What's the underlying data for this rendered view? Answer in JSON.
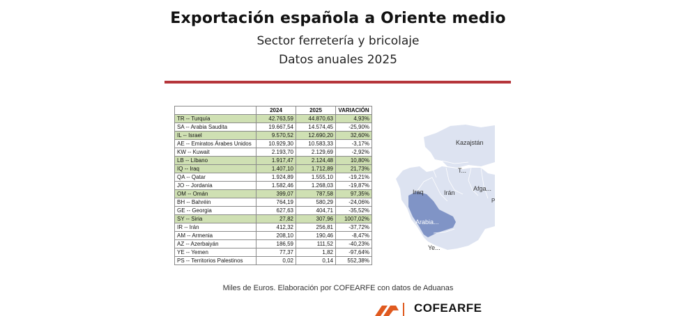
{
  "header": {
    "title": "Exportación española a Oriente medio",
    "subtitle": "Sector ferretería y bricolaje",
    "subtitle2": "Datos anuales 2025"
  },
  "table": {
    "columns": [
      "",
      "2024",
      "2025",
      "VARIACIÓN"
    ],
    "rows": [
      {
        "country": "TR -- Turquía",
        "y2024": "42.763,59",
        "y2025": "44.870,63",
        "variation": "4,93%",
        "highlight": true
      },
      {
        "country": "SA -- Arabia Saudita",
        "y2024": "19.667,54",
        "y2025": "14.574,45",
        "variation": "-25,90%",
        "highlight": false
      },
      {
        "country": "IL -- Israel",
        "y2024": "9.570,52",
        "y2025": "12.690,20",
        "variation": "32,60%",
        "highlight": true
      },
      {
        "country": "AE -- Emiratos Árabes Unidos",
        "y2024": "10.929,30",
        "y2025": "10.583,33",
        "variation": "-3,17%",
        "highlight": false
      },
      {
        "country": "KW -- Kuwait",
        "y2024": "2.193,70",
        "y2025": "2.129,69",
        "variation": "-2,92%",
        "highlight": false
      },
      {
        "country": "LB -- Líbano",
        "y2024": "1.917,47",
        "y2025": "2.124,48",
        "variation": "10,80%",
        "highlight": true
      },
      {
        "country": "IQ -- Iraq",
        "y2024": "1.407,10",
        "y2025": "1.712,89",
        "variation": "21,73%",
        "highlight": true
      },
      {
        "country": "QA -- Qatar",
        "y2024": "1.924,89",
        "y2025": "1.555,10",
        "variation": "-19,21%",
        "highlight": false
      },
      {
        "country": "JO -- Jordania",
        "y2024": "1.582,46",
        "y2025": "1.268,03",
        "variation": "-19,87%",
        "highlight": false
      },
      {
        "country": "OM -- Omán",
        "y2024": "399,07",
        "y2025": "787,58",
        "variation": "97,35%",
        "highlight": true
      },
      {
        "country": "BH -- Bahréin",
        "y2024": "764,19",
        "y2025": "580,29",
        "variation": "-24,06%",
        "highlight": false
      },
      {
        "country": "GE -- Georgia",
        "y2024": "627,63",
        "y2025": "404,71",
        "variation": "-35,52%",
        "highlight": false
      },
      {
        "country": "SY -- Siria",
        "y2024": "27,82",
        "y2025": "307,96",
        "variation": "1007,02%",
        "highlight": true
      },
      {
        "country": "IR -- Irán",
        "y2024": "412,32",
        "y2025": "256,81",
        "variation": "-37,72%",
        "highlight": false
      },
      {
        "country": "AM -- Armenia",
        "y2024": "208,10",
        "y2025": "190,46",
        "variation": "-8,47%",
        "highlight": false
      },
      {
        "country": "AZ -- Azerbaiyán",
        "y2024": "186,59",
        "y2025": "111,52",
        "variation": "-40,23%",
        "highlight": false
      },
      {
        "country": "YE -- Yemen",
        "y2024": "77,37",
        "y2025": "1,82",
        "variation": "-97,64%",
        "highlight": false
      },
      {
        "country": "PS -- Territorios Palestinos",
        "y2024": "0,02",
        "y2025": "0,14",
        "variation": "552,38%",
        "highlight": false
      }
    ]
  },
  "map": {
    "labels": {
      "kazakhstan": "Kazajstán",
      "turkmenistan": "T...",
      "iraq": "Iraq",
      "iran": "Irán",
      "afghanistan": "Afga...",
      "arabia": "Arabia...",
      "yemen": "Ye...",
      "edge_letter": "P"
    },
    "colors": {
      "land": "#dde3f1",
      "highlight": "#8094c6",
      "border": "#ffffff"
    }
  },
  "footnote": "Miles de Euros. Elaboración por COFEARFE con datos de Aduanas",
  "logo": {
    "name": "COFEARFE",
    "accent": "#e05a1f"
  },
  "colors": {
    "rule": "#b5353a",
    "row_highlight": "#cfe0b3"
  }
}
